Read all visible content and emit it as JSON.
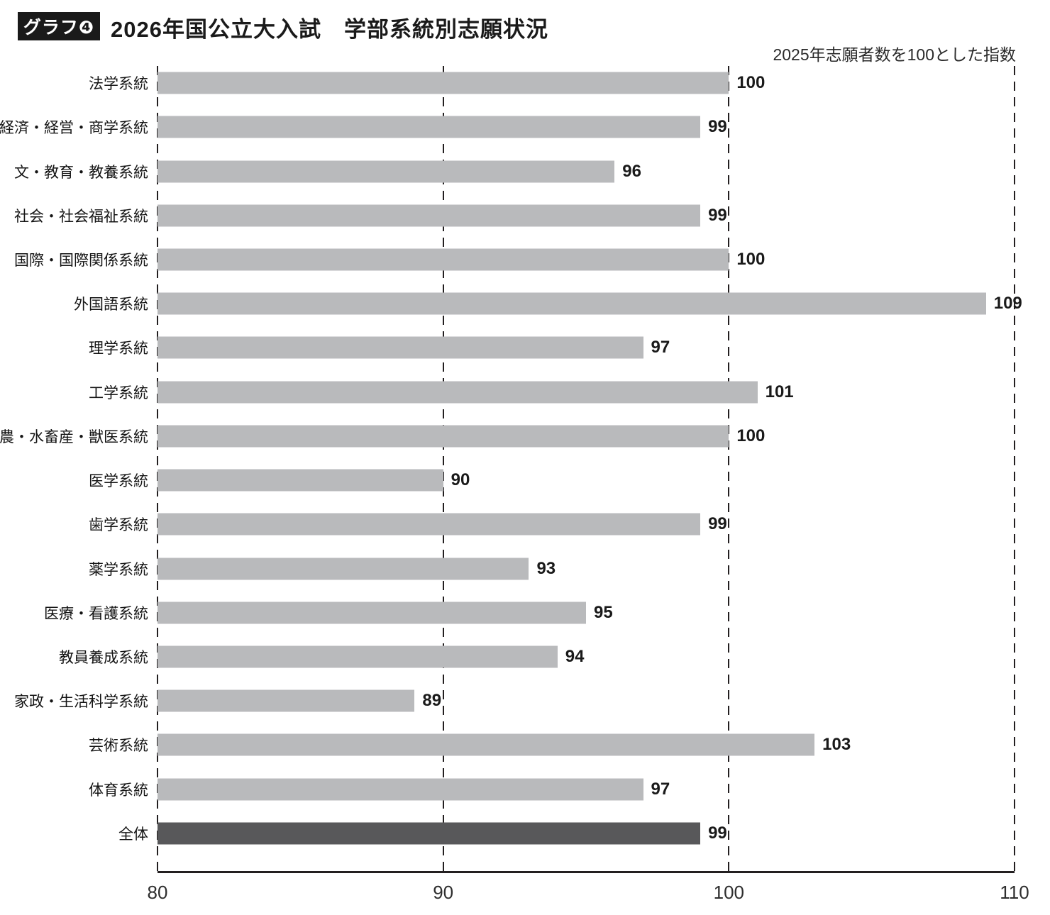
{
  "header": {
    "badge": "グラフ❹",
    "title": "2026年国公立大入試　学部系統別志願状況",
    "subtitle": "2025年志願者数を100とした指数"
  },
  "chart_data": {
    "type": "bar",
    "orientation": "horizontal",
    "title": "2026年国公立大入試　学部系統別志願状況",
    "note": "2025年志願者数を100とした指数",
    "categories": [
      "法学系統",
      "経済・経営・商学系統",
      "文・教育・教養系統",
      "社会・社会福祉系統",
      "国際・国際関係系統",
      "外国語系統",
      "理学系統",
      "工学系統",
      "農・水畜産・獣医系統",
      "医学系統",
      "歯学系統",
      "薬学系統",
      "医療・看護系統",
      "教員養成系統",
      "家政・生活科学系統",
      "芸術系統",
      "体育系統",
      "全体"
    ],
    "values": [
      100,
      99,
      96,
      99,
      100,
      109,
      97,
      101,
      100,
      90,
      99,
      93,
      95,
      94,
      89,
      103,
      97,
      99
    ],
    "xlim": [
      80,
      110
    ],
    "xticks": [
      80,
      90,
      100,
      110
    ],
    "grid": "dashed-vertical",
    "legend": "none",
    "highlight_category": "全体",
    "colors": {
      "bar": "#b9babc",
      "highlight_bar": "#58585a",
      "grid": "#231f20",
      "badge_bg": "#1a1a1a",
      "text": "#1a1a1a"
    }
  }
}
